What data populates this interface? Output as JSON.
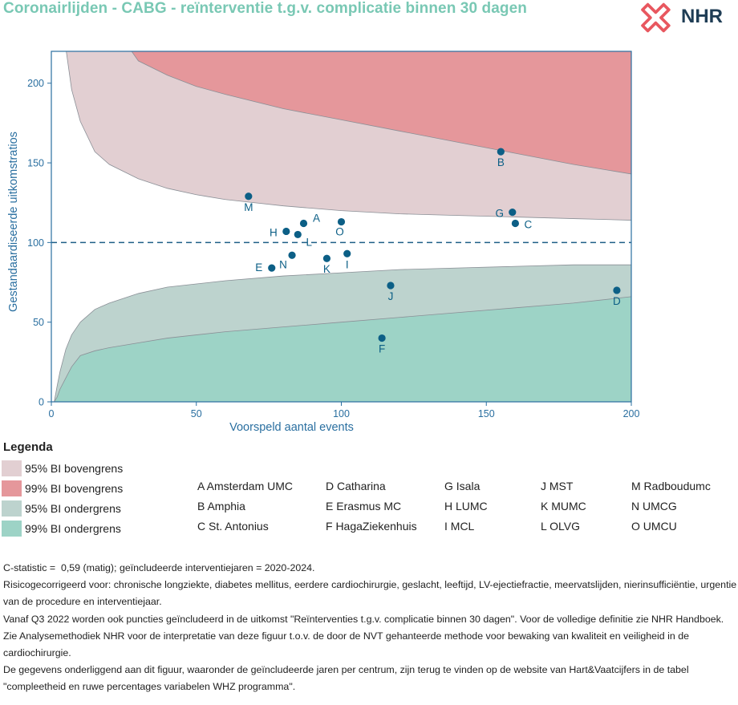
{
  "title": "Coronairlijden - CABG - reïnterventie t.g.v. complicatie binnen 30 dagen",
  "logo": {
    "name": "NHR",
    "icon": "nhr-logo-icon",
    "color": "#e8575f"
  },
  "chart_data": {
    "type": "scatter",
    "xlabel": "Voorspeld aantal events",
    "ylabel": "Gestandaardiseerde uitkomstratios",
    "xlim": [
      0,
      200
    ],
    "ylim": [
      0,
      220
    ],
    "xticks": [
      "0",
      "50",
      "100",
      "150",
      "200"
    ],
    "yticks": [
      "0",
      "50",
      "100",
      "150",
      "200"
    ],
    "reference_line": 100,
    "colors": {
      "upper95": "#e2cfd2",
      "upper99": "#e5979b",
      "lower95": "#bdd3ce",
      "lower99": "#9dd3c6",
      "points": "#0c5f86",
      "axes": "#2a6fa0"
    },
    "bands": {
      "x": [
        1,
        2,
        3,
        5,
        7,
        10,
        15,
        20,
        30,
        40,
        50,
        60,
        80,
        100,
        120,
        140,
        160,
        180,
        200
      ],
      "upper99": [
        null,
        null,
        null,
        null,
        null,
        null,
        null,
        null,
        214,
        205,
        198,
        193,
        184,
        177,
        170,
        163,
        156,
        149,
        143
      ],
      "upper95": [
        null,
        null,
        null,
        222,
        196,
        176,
        157,
        149,
        140,
        134,
        130,
        127,
        123,
        120,
        118,
        117,
        116,
        115,
        114
      ],
      "lower95": [
        0,
        10,
        19,
        33,
        42,
        50,
        58,
        62,
        68,
        72,
        74,
        76,
        79,
        81,
        83,
        84,
        85,
        86,
        86
      ],
      "lower99": [
        0,
        3,
        8,
        15,
        22,
        29,
        32,
        34,
        37,
        40,
        42,
        44,
        47,
        50,
        53,
        56,
        59,
        62,
        66
      ]
    },
    "points": [
      {
        "label": "A",
        "x": 87,
        "y": 112
      },
      {
        "label": "B",
        "x": 155,
        "y": 157
      },
      {
        "label": "C",
        "x": 160,
        "y": 112
      },
      {
        "label": "D",
        "x": 195,
        "y": 70
      },
      {
        "label": "E",
        "x": 76,
        "y": 84
      },
      {
        "label": "F",
        "x": 114,
        "y": 40
      },
      {
        "label": "G",
        "x": 159,
        "y": 119
      },
      {
        "label": "H",
        "x": 81,
        "y": 107
      },
      {
        "label": "I",
        "x": 102,
        "y": 93
      },
      {
        "label": "J",
        "x": 117,
        "y": 73
      },
      {
        "label": "K",
        "x": 95,
        "y": 90
      },
      {
        "label": "L",
        "x": 85,
        "y": 105
      },
      {
        "label": "M",
        "x": 68,
        "y": 129
      },
      {
        "label": "N",
        "x": 83,
        "y": 92
      },
      {
        "label": "O",
        "x": 100,
        "y": 113
      }
    ]
  },
  "legend": {
    "title": "Legenda",
    "items": [
      {
        "label": "95% BI bovengrens",
        "color": "#e2cfd2"
      },
      {
        "label": "99% BI bovengrens",
        "color": "#e5979b"
      },
      {
        "label": "95% BI ondergrens",
        "color": "#bdd3ce"
      },
      {
        "label": "99% BI ondergrens",
        "color": "#9dd3c6"
      }
    ]
  },
  "centers": [
    "A Amsterdam UMC",
    "B Amphia",
    "C St. Antonius",
    "D Catharina",
    "E Erasmus MC",
    "F HagaZiekenhuis",
    "G Isala",
    "H LUMC",
    "I MCL",
    "J MST",
    "K MUMC",
    "L OLVG",
    "M Radboudumc",
    "N UMCG",
    "O UMCU"
  ],
  "notes": [
    "C-statistic =  0,59 (matig); geïncludeerde interventiejaren = 2020-2024.",
    "Risicogecorrigeerd voor: chronische longziekte, diabetes mellitus, eerdere cardiochirurgie, geslacht, leeftijd, LV-ejectiefractie, meervatslijden, nierinsufficiëntie, urgentie van de procedure en interventiejaar.",
    "Vanaf Q3 2022 worden ook puncties geïncludeerd in de uitkomst \"Reïnterventies t.g.v. complicatie binnen 30 dagen\". Voor de volledige definitie zie NHR Handboek.",
    "Zie Analysemethodiek NHR voor de interpretatie van deze figuur t.o.v. de door de NVT gehanteerde methode voor bewaking van kwaliteit en veiligheid in de cardiochirurgie.",
    "De gegevens onderliggend aan dit figuur, waaronder de geïncludeerde jaren per centrum, zijn terug te vinden op de website van Hart&Vaatcijfers in de tabel \"compleetheid en ruwe percentages variabelen WHZ programma\"."
  ]
}
